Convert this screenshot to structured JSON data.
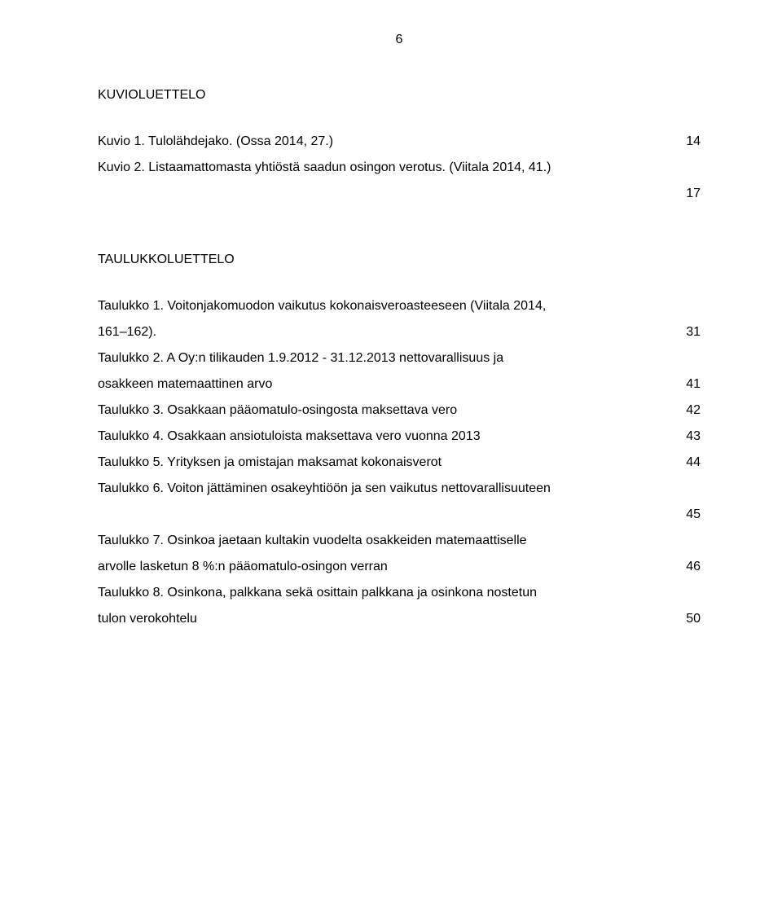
{
  "page_number": "6",
  "sections": [
    {
      "title": "KUVIOLUETTELO",
      "entries": [
        {
          "label": "Kuvio 1. Tulolähdejako. (Ossa 2014, 27.)",
          "page": "14"
        },
        {
          "label": "Kuvio 2. Listaamattomasta yhtiöstä saadun osingon verotus. (Viitala 2014, 41.)",
          "line1": "Kuvio 2. Listaamattomasta yhtiöstä saadun osingon verotus. (Viitala 2014, 41.)",
          "line2": "",
          "page": "17"
        }
      ]
    },
    {
      "title": "TAULUKKOLUETTELO",
      "entries": [
        {
          "line1": "Taulukko 1. Voitonjakomuodon vaikutus kokonaisveroasteeseen (Viitala 2014,",
          "line2": "161–162).",
          "page": "31"
        },
        {
          "line1": "Taulukko 2. A Oy:n tilikauden 1.9.2012 - 31.12.2013 nettovarallisuus ja",
          "line2": "osakkeen matemaattinen arvo",
          "page": "41"
        },
        {
          "label": "Taulukko 3. Osakkaan pääomatulo-osingosta maksettava vero",
          "page": "42"
        },
        {
          "label": "Taulukko 4. Osakkaan ansiotuloista maksettava vero vuonna 2013",
          "page": "43"
        },
        {
          "label": "Taulukko 5. Yrityksen ja omistajan maksamat kokonaisverot",
          "page": "44"
        },
        {
          "line1": "Taulukko 6. Voiton jättäminen osakeyhtiöön ja sen vaikutus nettovarallisuuteen",
          "line2": "",
          "page": "45"
        },
        {
          "line1": "Taulukko 7. Osinkoa jaetaan kultakin vuodelta osakkeiden matemaattiselle",
          "line2": "arvolle lasketun 8 %:n pääomatulo-osingon verran",
          "page": "46"
        },
        {
          "line1": "Taulukko 8. Osinkona, palkkana sekä osittain palkkana ja osinkona nostetun",
          "line2": "tulon verokohtelu",
          "page": "50"
        }
      ]
    }
  ],
  "colors": {
    "background": "#ffffff",
    "text": "#000000"
  },
  "typography": {
    "font_family": "Arial",
    "body_fontsize_pt": 12,
    "line_spacing": 2.0
  }
}
